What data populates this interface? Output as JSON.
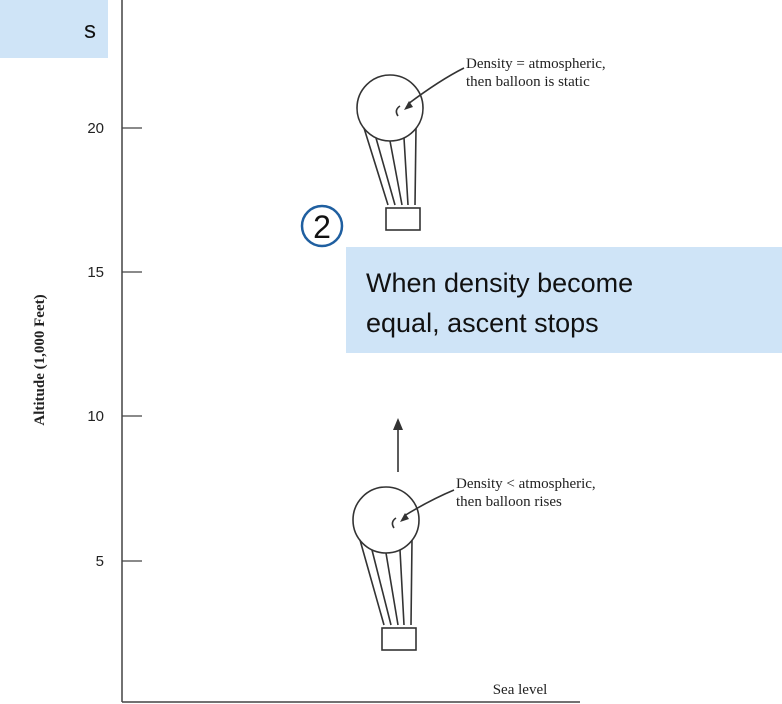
{
  "top_box": {
    "text": "s"
  },
  "axis": {
    "label": "Altitude (1,000 Feet)",
    "ticks": [
      20,
      15,
      10,
      5
    ]
  },
  "balloons": [
    {
      "label_lines": [
        "Density = atmospheric,",
        "then balloon is static"
      ]
    },
    {
      "label_lines": [
        "Density < atmospheric,",
        "then balloon rises"
      ]
    }
  ],
  "sea_level": "Sea level",
  "callout": {
    "number": "2",
    "lines": [
      "When density become",
      "equal, ascent stops"
    ]
  }
}
